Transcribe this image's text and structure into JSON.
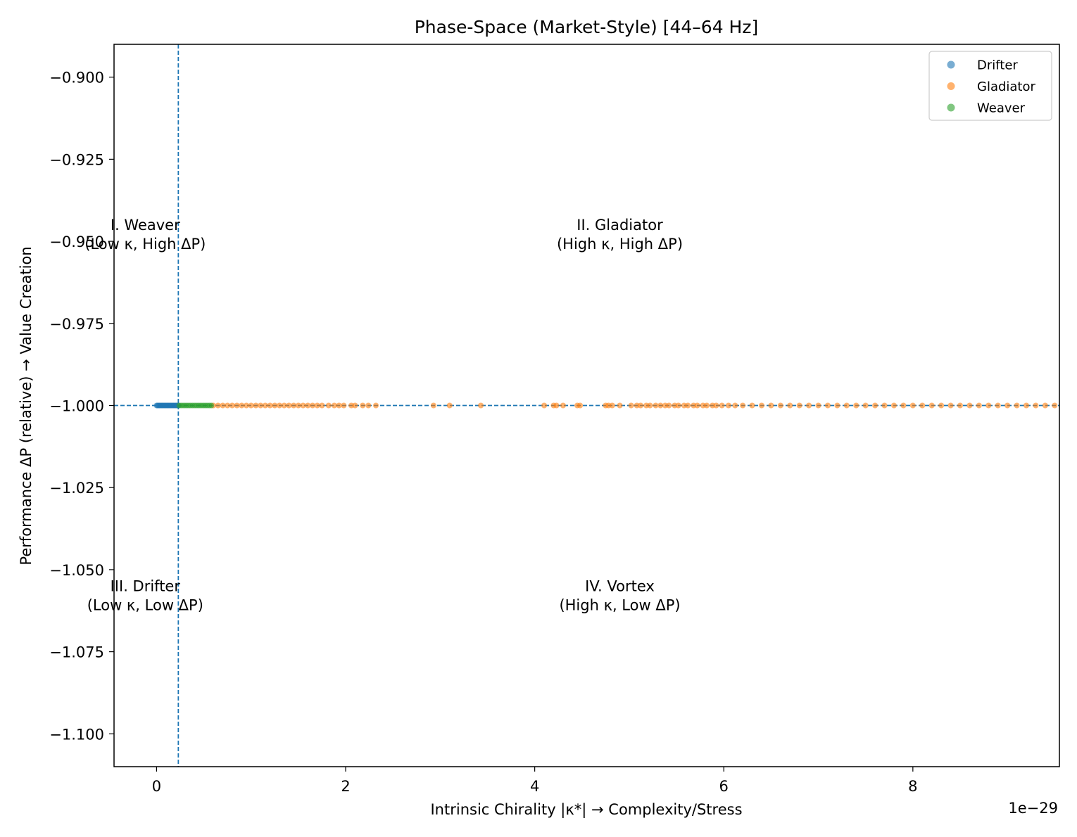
{
  "chart_data": {
    "type": "scatter",
    "title": "Phase-Space (Market-Style)  [44–64 Hz]",
    "xlabel": "Intrinsic Chirality |κ*|  → Complexity/Stress",
    "ylabel": "Performance ΔP (relative) → Value Creation",
    "x_offset_label": "1e−29",
    "xlim": [
      -0.45,
      9.55
    ],
    "ylim": [
      -1.11,
      -0.89
    ],
    "x_ticks": [
      0,
      2,
      4,
      6,
      8
    ],
    "x_tick_labels": [
      "0",
      "2",
      "4",
      "6",
      "8"
    ],
    "y_ticks": [
      -0.9,
      -0.925,
      -0.95,
      -0.975,
      -1.0,
      -1.025,
      -1.05,
      -1.075,
      -1.1
    ],
    "y_tick_labels": [
      "−0.900",
      "−0.925",
      "−0.950",
      "−0.975",
      "−1.000",
      "−1.025",
      "−1.050",
      "−1.075",
      "−1.100"
    ],
    "grid": false,
    "legend_position": "top-right",
    "reference_lines": {
      "vertical_x": 0.23,
      "horizontal_y": -1.0,
      "color": "#1f77b4",
      "style": "dashed"
    },
    "quadrant_labels": [
      {
        "line1": "I. Weaver",
        "line2": "(Low κ, High ΔP)",
        "x": -0.12,
        "y": -0.9465
      },
      {
        "line1": "II. Gladiator",
        "line2": "(High κ, High ΔP)",
        "x": 4.9,
        "y": -0.9465
      },
      {
        "line1": "III. Drifter",
        "line2": "(Low κ, Low ΔP)",
        "x": -0.12,
        "y": -1.0565
      },
      {
        "line1": "IV. Vortex",
        "line2": "(High κ, Low ΔP)",
        "x": 4.9,
        "y": -1.0565
      }
    ],
    "series": [
      {
        "name": "Drifter",
        "color": "#1f77b4",
        "x": [
          0.0,
          0.01,
          0.02,
          0.03,
          0.04,
          0.05,
          0.06,
          0.07,
          0.08,
          0.09,
          0.1,
          0.11,
          0.12,
          0.13,
          0.14,
          0.15,
          0.16,
          0.17,
          0.18,
          0.19,
          0.2,
          0.21,
          0.22,
          0.23
        ],
        "y": [
          -1,
          -1,
          -1,
          -1,
          -1,
          -1,
          -1,
          -1,
          -1,
          -1,
          -1,
          -1,
          -1,
          -1,
          -1,
          -1,
          -1,
          -1,
          -1,
          -1,
          -1,
          -1,
          -1,
          -1
        ]
      },
      {
        "name": "Gladiator",
        "color": "#ff7f0e",
        "x": [
          0.6,
          0.65,
          0.7,
          0.75,
          0.8,
          0.85,
          0.9,
          0.95,
          1.0,
          1.05,
          1.1,
          1.15,
          1.2,
          1.25,
          1.3,
          1.35,
          1.4,
          1.45,
          1.5,
          1.55,
          1.6,
          1.65,
          1.7,
          1.75,
          1.82,
          1.88,
          1.93,
          1.98,
          2.06,
          2.1,
          2.18,
          2.24,
          2.32,
          2.93,
          3.1,
          3.43,
          4.1,
          4.2,
          4.23,
          4.3,
          4.45,
          4.48,
          4.75,
          4.78,
          4.82,
          4.9,
          5.02,
          5.08,
          5.12,
          5.18,
          5.22,
          5.28,
          5.33,
          5.38,
          5.42,
          5.48,
          5.52,
          5.58,
          5.62,
          5.68,
          5.72,
          5.78,
          5.82,
          5.88,
          5.92,
          5.98,
          6.05,
          6.12,
          6.2,
          6.3,
          6.4,
          6.5,
          6.6,
          6.7,
          6.8,
          6.9,
          7.0,
          7.1,
          7.2,
          7.3,
          7.4,
          7.5,
          7.6,
          7.7,
          7.8,
          7.9,
          8.0,
          8.1,
          8.2,
          8.3,
          8.4,
          8.5,
          8.6,
          8.7,
          8.8,
          8.9,
          9.0,
          9.1,
          9.2,
          9.3,
          9.4,
          9.5
        ],
        "y": [
          -1,
          -1,
          -1,
          -1,
          -1,
          -1,
          -1,
          -1,
          -1,
          -1,
          -1,
          -1,
          -1,
          -1,
          -1,
          -1,
          -1,
          -1,
          -1,
          -1,
          -1,
          -1,
          -1,
          -1,
          -1,
          -1,
          -1,
          -1,
          -1,
          -1,
          -1,
          -1,
          -1,
          -1,
          -1,
          -1,
          -1,
          -1,
          -1,
          -1,
          -1,
          -1,
          -1,
          -1,
          -1,
          -1,
          -1,
          -1,
          -1,
          -1,
          -1,
          -1,
          -1,
          -1,
          -1,
          -1,
          -1,
          -1,
          -1,
          -1,
          -1,
          -1,
          -1,
          -1,
          -1,
          -1,
          -1,
          -1,
          -1,
          -1,
          -1,
          -1,
          -1,
          -1,
          -1,
          -1,
          -1,
          -1,
          -1,
          -1,
          -1,
          -1,
          -1,
          -1,
          -1,
          -1,
          -1,
          -1,
          -1,
          -1,
          -1,
          -1,
          -1,
          -1,
          -1,
          -1,
          -1,
          -1,
          -1,
          -1,
          -1,
          -1
        ]
      },
      {
        "name": "Weaver",
        "color": "#2ca02c",
        "x": [
          0.24,
          0.26,
          0.28,
          0.3,
          0.32,
          0.34,
          0.36,
          0.38,
          0.4,
          0.42,
          0.44,
          0.46,
          0.48,
          0.5,
          0.52,
          0.54,
          0.56,
          0.58
        ],
        "y": [
          -1,
          -1,
          -1,
          -1,
          -1,
          -1,
          -1,
          -1,
          -1,
          -1,
          -1,
          -1,
          -1,
          -1,
          -1,
          -1,
          -1,
          -1
        ]
      }
    ]
  }
}
